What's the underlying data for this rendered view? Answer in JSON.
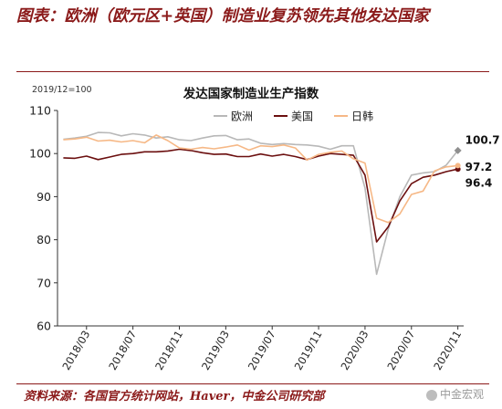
{
  "figure": {
    "title": "图表：欧洲（欧元区+英国）制造业复苏领先其他发达国家",
    "source": "资料来源：各国官方统计网站，Haver，中金公司研究部",
    "watermark": "中金宏观"
  },
  "colors": {
    "europe": "#b8b8b8",
    "us": "#6b0f0f",
    "jpkr": "#f6b886",
    "brand": "#8b1a1a",
    "axis": "#333333"
  },
  "chart_data": {
    "type": "line",
    "title": "发达国家制造业生产指数",
    "note": "2019/12=100",
    "xlabel": "",
    "ylabel": "",
    "ylim": [
      60,
      110
    ],
    "yticks": [
      60,
      70,
      80,
      90,
      100,
      110
    ],
    "x": [
      "2018/01",
      "2018/02",
      "2018/03",
      "2018/04",
      "2018/05",
      "2018/06",
      "2018/07",
      "2018/08",
      "2018/09",
      "2018/10",
      "2018/11",
      "2018/12",
      "2019/01",
      "2019/02",
      "2019/03",
      "2019/04",
      "2019/05",
      "2019/06",
      "2019/07",
      "2019/08",
      "2019/09",
      "2019/10",
      "2019/11",
      "2019/12",
      "2020/01",
      "2020/02",
      "2020/03",
      "2020/04",
      "2020/05",
      "2020/06",
      "2020/07",
      "2020/08",
      "2020/09",
      "2020/10",
      "2020/11"
    ],
    "xtick_labels": [
      "2018/03",
      "2018/07",
      "2018/11",
      "2019/03",
      "2019/07",
      "2019/11",
      "2020/03",
      "2020/07",
      "2020/11"
    ],
    "legend": {
      "position": "top-right"
    },
    "grid": false,
    "series": [
      {
        "name": "欧洲",
        "color_key": "europe",
        "marker": "diamond",
        "values": [
          103.3,
          103.6,
          104.0,
          104.9,
          104.8,
          104.1,
          104.6,
          104.3,
          103.6,
          103.9,
          103.2,
          103.0,
          103.6,
          104.1,
          104.2,
          103.2,
          103.4,
          102.4,
          102.1,
          102.3,
          102.1,
          102.0,
          101.7,
          101.0,
          101.8,
          101.8,
          92.0,
          72.0,
          82.5,
          90.0,
          95.0,
          95.5,
          95.8,
          97.3,
          100.7
        ],
        "end_label": "100.7"
      },
      {
        "name": "美国",
        "color_key": "us",
        "marker": "circle",
        "values": [
          99.0,
          98.9,
          99.4,
          98.6,
          99.2,
          99.8,
          100.0,
          100.4,
          100.4,
          100.6,
          101.0,
          100.7,
          100.2,
          99.8,
          99.9,
          99.3,
          99.3,
          99.9,
          99.4,
          99.8,
          99.3,
          98.6,
          99.4,
          100.0,
          99.8,
          99.6,
          95.0,
          79.5,
          83.0,
          89.0,
          93.0,
          94.5,
          95.0,
          95.8,
          96.4
        ],
        "end_label": "96.4"
      },
      {
        "name": "日韩",
        "color_key": "jpkr",
        "marker": "circle",
        "values": [
          103.2,
          103.4,
          103.8,
          102.9,
          103.1,
          102.7,
          103.0,
          102.5,
          104.3,
          103.0,
          101.3,
          101.0,
          101.4,
          101.1,
          101.5,
          102.0,
          100.8,
          101.8,
          101.6,
          102.0,
          101.3,
          98.5,
          99.8,
          100.3,
          100.6,
          98.8,
          97.8,
          85.0,
          84.0,
          86.0,
          90.5,
          91.3,
          96.0,
          96.9,
          97.2
        ],
        "end_label": "97.2"
      }
    ]
  }
}
